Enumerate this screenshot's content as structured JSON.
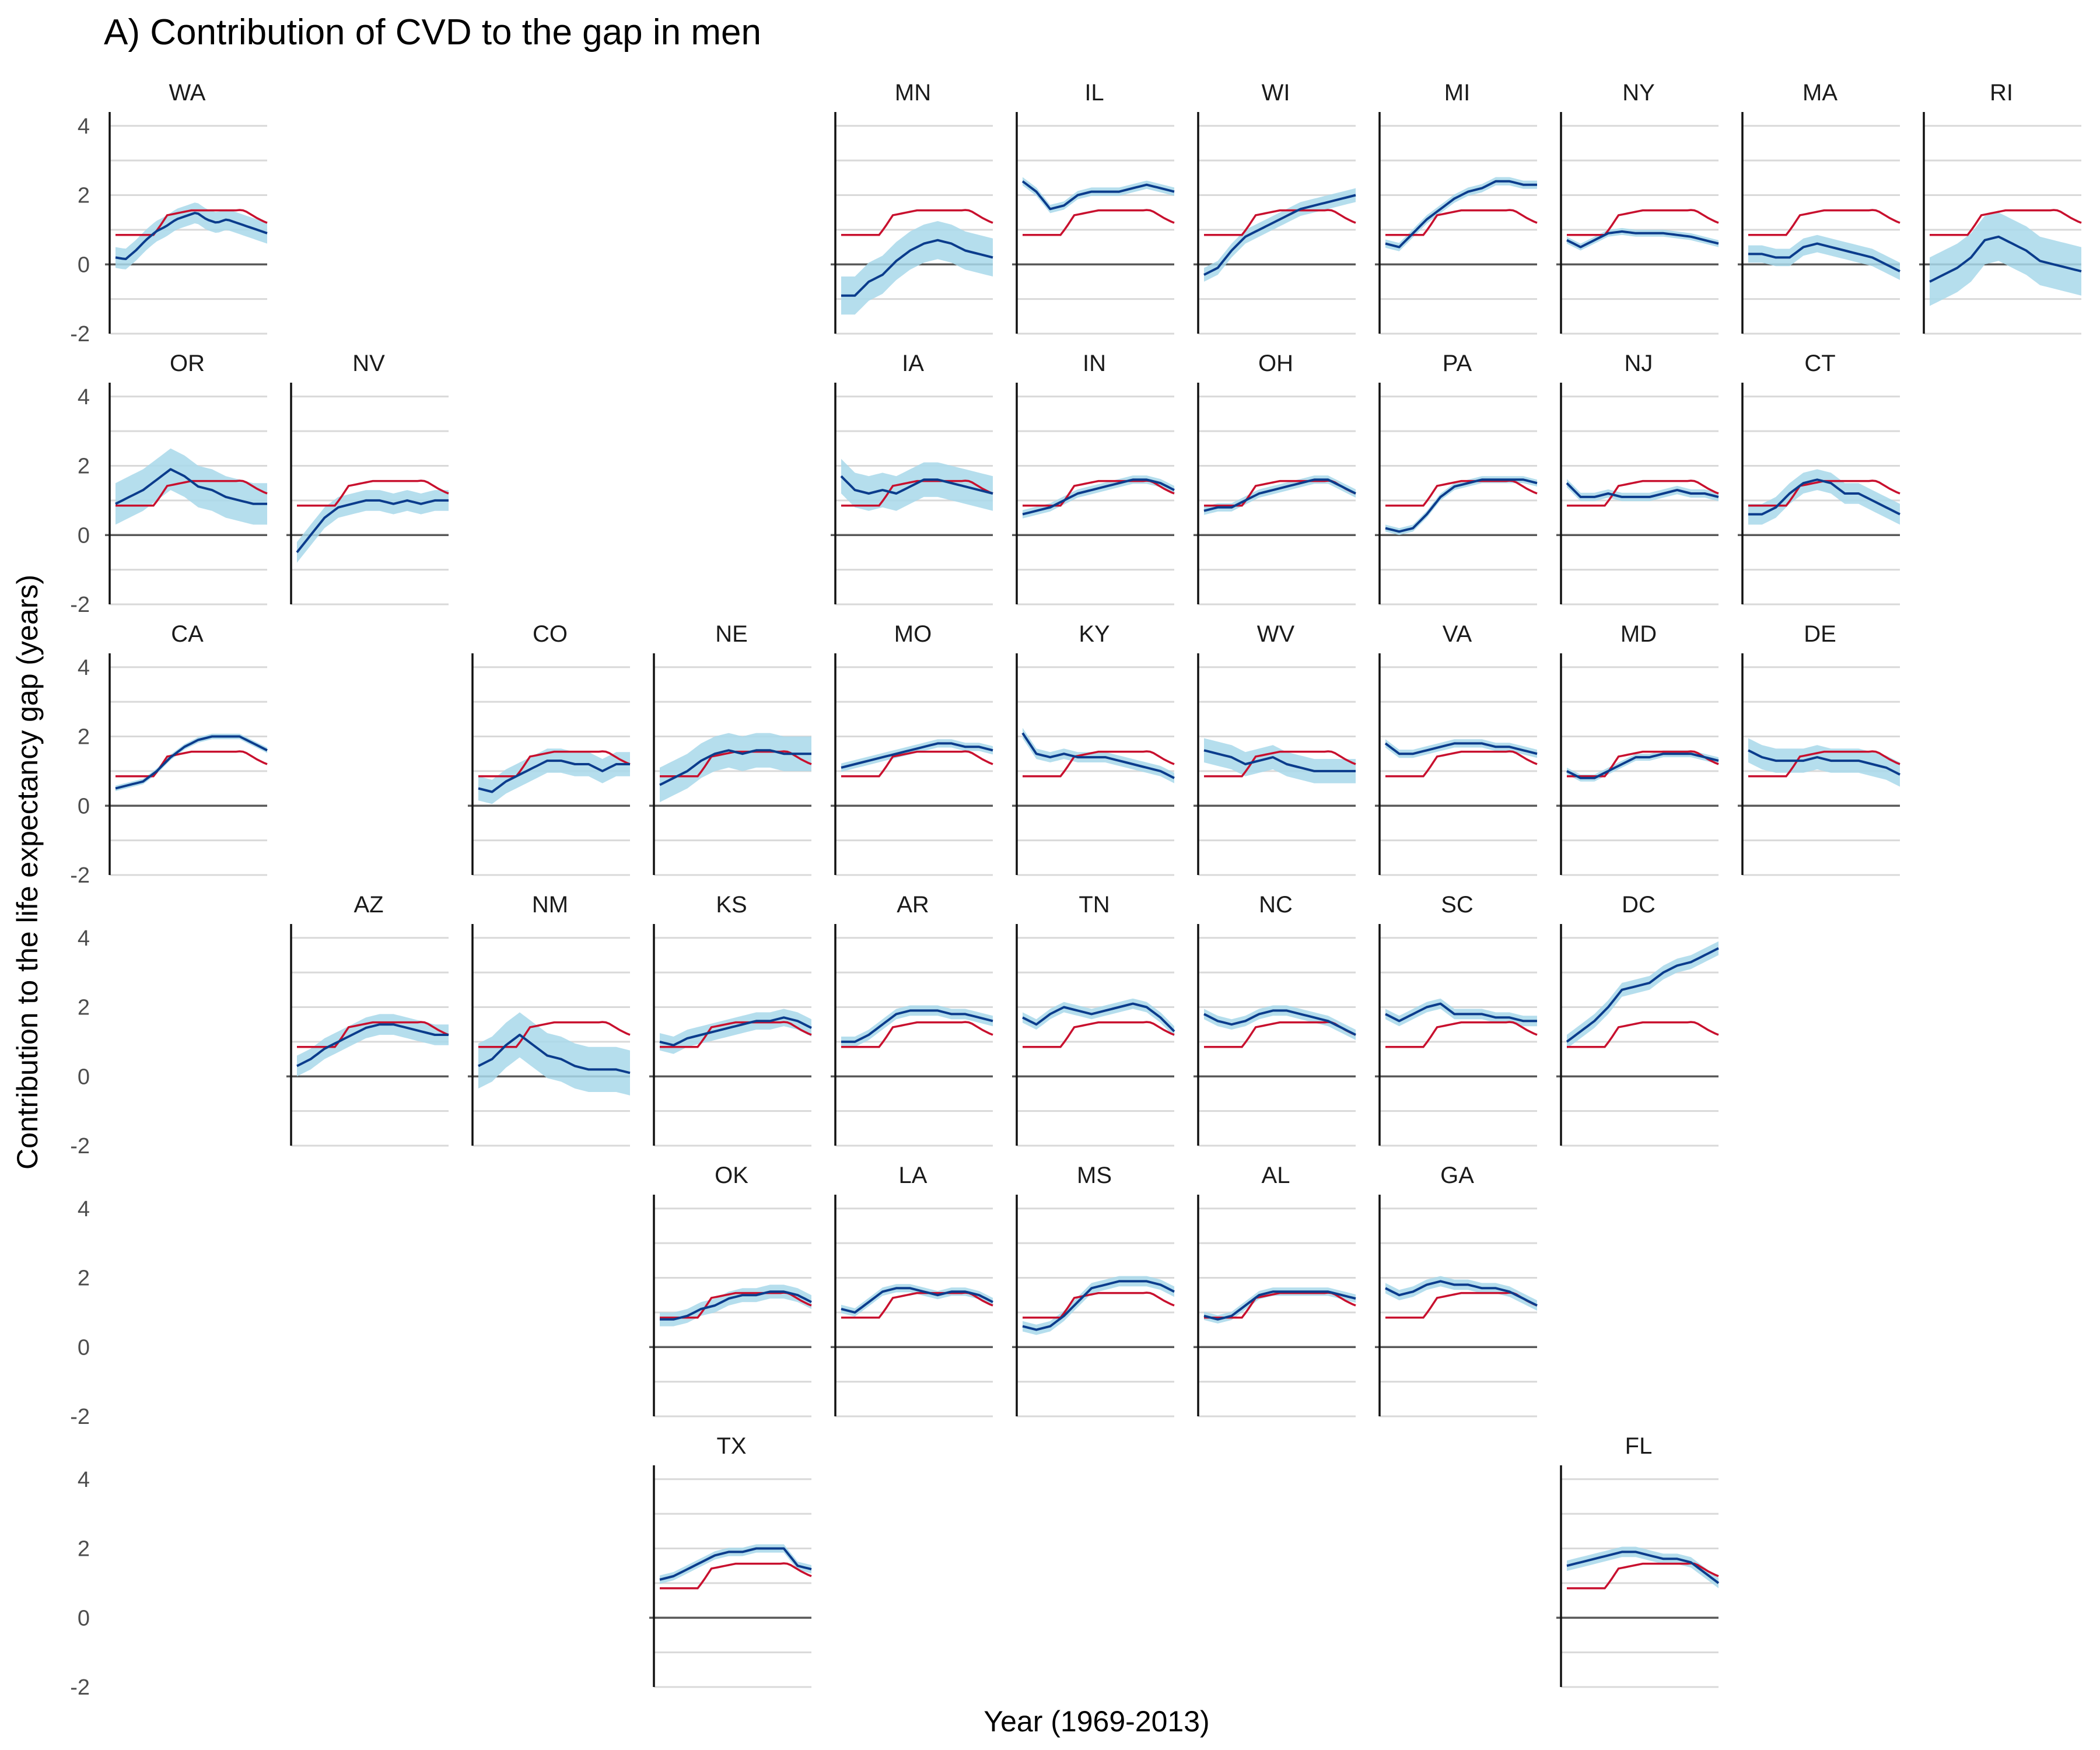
{
  "chart_data": {
    "type": "line",
    "title": "A) Contribution of CVD to the gap in men",
    "xlabel": "Year (1969-2013)",
    "ylabel": "Contribution to the life expectancy gap (years)",
    "ylim": [
      -2,
      4.4
    ],
    "yticks": [
      4,
      2,
      0,
      -2
    ],
    "ytick_labels": [
      "4",
      "2",
      "0",
      "-2"
    ],
    "grid": true,
    "colors": {
      "state_line": "#0b3c8c",
      "state_band": "#a8d8ea",
      "national_line": "#c8102e",
      "zero_line": "#595959",
      "grid": "#d9d9d9"
    },
    "reference_series": [
      0.85,
      0.85,
      0.85,
      0.85,
      0.85,
      0.85,
      0.85,
      0.85,
      0.85,
      0.85,
      0.85,
      0.85,
      0.98,
      1.12,
      1.27,
      1.42,
      1.44,
      1.46,
      1.48,
      1.5,
      1.52,
      1.54,
      1.56,
      1.56,
      1.56,
      1.56,
      1.56,
      1.56,
      1.56,
      1.56,
      1.56,
      1.56,
      1.56,
      1.56,
      1.56,
      1.56,
      1.57,
      1.56,
      1.52,
      1.46,
      1.4,
      1.34,
      1.29,
      1.24,
      1.2
    ],
    "states": [
      {
        "name": "WA",
        "row": 0,
        "col": 0,
        "ci": 0.3,
        "values": [
          0.2,
          0.15,
          0.4,
          0.7,
          0.95,
          1.1,
          1.3,
          1.4,
          1.5,
          1.3,
          1.2,
          1.3,
          1.2,
          1.1,
          1.0,
          0.9
        ]
      },
      {
        "name": "MN",
        "row": 0,
        "col": 4,
        "ci": 0.55,
        "values": [
          -0.9,
          -0.9,
          -0.5,
          -0.3,
          0.1,
          0.4,
          0.6,
          0.7,
          0.6,
          0.4,
          0.3,
          0.2
        ]
      },
      {
        "name": "IL",
        "row": 0,
        "col": 5,
        "ci": 0.12,
        "values": [
          2.4,
          2.1,
          1.6,
          1.7,
          2.0,
          2.1,
          2.1,
          2.1,
          2.2,
          2.3,
          2.2,
          2.1
        ]
      },
      {
        "name": "WI",
        "row": 0,
        "col": 6,
        "ci": 0.2,
        "values": [
          -0.3,
          -0.1,
          0.4,
          0.8,
          1.0,
          1.2,
          1.4,
          1.6,
          1.7,
          1.8,
          1.9,
          2.0
        ]
      },
      {
        "name": "MI",
        "row": 0,
        "col": 7,
        "ci": 0.12,
        "values": [
          0.6,
          0.5,
          0.9,
          1.3,
          1.6,
          1.9,
          2.1,
          2.2,
          2.4,
          2.4,
          2.3,
          2.3
        ]
      },
      {
        "name": "NY",
        "row": 0,
        "col": 8,
        "ci": 0.1,
        "values": [
          0.7,
          0.5,
          0.7,
          0.9,
          0.95,
          0.9,
          0.9,
          0.9,
          0.85,
          0.8,
          0.7,
          0.6
        ]
      },
      {
        "name": "MA",
        "row": 0,
        "col": 9,
        "ci": 0.25,
        "values": [
          0.3,
          0.3,
          0.2,
          0.2,
          0.5,
          0.6,
          0.5,
          0.4,
          0.3,
          0.2,
          0.0,
          -0.2
        ]
      },
      {
        "name": "RI",
        "row": 0,
        "col": 10,
        "ci": 0.7,
        "values": [
          -0.5,
          -0.3,
          -0.1,
          0.2,
          0.7,
          0.8,
          0.6,
          0.4,
          0.1,
          0.0,
          -0.1,
          -0.2
        ]
      },
      {
        "name": "OR",
        "row": 1,
        "col": 0,
        "ci": 0.6,
        "values": [
          0.9,
          1.1,
          1.3,
          1.6,
          1.9,
          1.7,
          1.4,
          1.3,
          1.1,
          1.0,
          0.9,
          0.9
        ]
      },
      {
        "name": "NV",
        "row": 1,
        "col": 1,
        "ci": 0.3,
        "values": [
          -0.5,
          0.0,
          0.5,
          0.8,
          0.9,
          1.0,
          1.0,
          0.9,
          1.0,
          0.9,
          1.0,
          1.0
        ]
      },
      {
        "name": "IA",
        "row": 1,
        "col": 4,
        "ci": 0.5,
        "values": [
          1.7,
          1.3,
          1.2,
          1.3,
          1.2,
          1.4,
          1.6,
          1.6,
          1.5,
          1.4,
          1.3,
          1.2
        ]
      },
      {
        "name": "IN",
        "row": 1,
        "col": 5,
        "ci": 0.12,
        "values": [
          0.6,
          0.7,
          0.8,
          1.0,
          1.2,
          1.3,
          1.4,
          1.5,
          1.6,
          1.6,
          1.5,
          1.3
        ]
      },
      {
        "name": "OH",
        "row": 1,
        "col": 6,
        "ci": 0.12,
        "values": [
          0.7,
          0.8,
          0.8,
          1.0,
          1.2,
          1.3,
          1.4,
          1.5,
          1.6,
          1.6,
          1.4,
          1.2
        ]
      },
      {
        "name": "PA",
        "row": 1,
        "col": 7,
        "ci": 0.1,
        "values": [
          0.2,
          0.1,
          0.2,
          0.6,
          1.1,
          1.4,
          1.5,
          1.6,
          1.6,
          1.6,
          1.6,
          1.5
        ]
      },
      {
        "name": "NJ",
        "row": 1,
        "col": 8,
        "ci": 0.12,
        "values": [
          1.5,
          1.1,
          1.1,
          1.2,
          1.1,
          1.1,
          1.1,
          1.2,
          1.3,
          1.2,
          1.2,
          1.1
        ]
      },
      {
        "name": "CT",
        "row": 1,
        "col": 9,
        "ci": 0.3,
        "values": [
          0.6,
          0.6,
          0.8,
          1.2,
          1.5,
          1.6,
          1.5,
          1.2,
          1.2,
          1.0,
          0.8,
          0.6
        ]
      },
      {
        "name": "CA",
        "row": 2,
        "col": 0,
        "ci": 0.08,
        "values": [
          0.5,
          0.6,
          0.7,
          1.0,
          1.4,
          1.7,
          1.9,
          2.0,
          2.0,
          2.0,
          1.8,
          1.6
        ]
      },
      {
        "name": "CO",
        "row": 2,
        "col": 2,
        "ci": 0.35,
        "values": [
          0.5,
          0.4,
          0.7,
          0.9,
          1.1,
          1.3,
          1.3,
          1.2,
          1.2,
          1.0,
          1.2,
          1.2
        ]
      },
      {
        "name": "NE",
        "row": 2,
        "col": 3,
        "ci": 0.5,
        "values": [
          0.6,
          0.8,
          1.0,
          1.3,
          1.5,
          1.6,
          1.5,
          1.6,
          1.6,
          1.5,
          1.5,
          1.5
        ]
      },
      {
        "name": "MO",
        "row": 2,
        "col": 4,
        "ci": 0.12,
        "values": [
          1.1,
          1.2,
          1.3,
          1.4,
          1.5,
          1.6,
          1.7,
          1.8,
          1.8,
          1.7,
          1.7,
          1.6
        ]
      },
      {
        "name": "KY",
        "row": 2,
        "col": 5,
        "ci": 0.15,
        "values": [
          2.1,
          1.5,
          1.4,
          1.5,
          1.4,
          1.4,
          1.4,
          1.3,
          1.2,
          1.1,
          1.0,
          0.8
        ]
      },
      {
        "name": "WV",
        "row": 2,
        "col": 6,
        "ci": 0.35,
        "values": [
          1.6,
          1.5,
          1.4,
          1.2,
          1.3,
          1.4,
          1.2,
          1.1,
          1.0,
          1.0,
          1.0,
          1.0
        ]
      },
      {
        "name": "VA",
        "row": 2,
        "col": 7,
        "ci": 0.12,
        "values": [
          1.8,
          1.5,
          1.5,
          1.6,
          1.7,
          1.8,
          1.8,
          1.8,
          1.7,
          1.7,
          1.6,
          1.5
        ]
      },
      {
        "name": "MD",
        "row": 2,
        "col": 8,
        "ci": 0.1,
        "values": [
          1.0,
          0.8,
          0.8,
          1.0,
          1.2,
          1.4,
          1.4,
          1.5,
          1.5,
          1.5,
          1.4,
          1.3
        ]
      },
      {
        "name": "DE",
        "row": 2,
        "col": 9,
        "ci": 0.35,
        "values": [
          1.6,
          1.4,
          1.3,
          1.3,
          1.3,
          1.4,
          1.3,
          1.3,
          1.3,
          1.2,
          1.1,
          0.9
        ]
      },
      {
        "name": "AZ",
        "row": 3,
        "col": 1,
        "ci": 0.3,
        "values": [
          0.3,
          0.5,
          0.8,
          1.0,
          1.2,
          1.4,
          1.5,
          1.5,
          1.4,
          1.3,
          1.2,
          1.2
        ]
      },
      {
        "name": "NM",
        "row": 3,
        "col": 2,
        "ci": 0.65,
        "values": [
          0.3,
          0.5,
          0.9,
          1.2,
          0.9,
          0.6,
          0.5,
          0.3,
          0.2,
          0.2,
          0.2,
          0.1
        ]
      },
      {
        "name": "KS",
        "row": 3,
        "col": 3,
        "ci": 0.25,
        "values": [
          1.0,
          0.9,
          1.1,
          1.2,
          1.3,
          1.4,
          1.5,
          1.6,
          1.6,
          1.7,
          1.6,
          1.4
        ]
      },
      {
        "name": "AR",
        "row": 3,
        "col": 4,
        "ci": 0.15,
        "values": [
          1.0,
          1.0,
          1.2,
          1.5,
          1.8,
          1.9,
          1.9,
          1.9,
          1.8,
          1.8,
          1.7,
          1.6
        ]
      },
      {
        "name": "TN",
        "row": 3,
        "col": 5,
        "ci": 0.15,
        "values": [
          1.7,
          1.5,
          1.8,
          2.0,
          1.9,
          1.8,
          1.9,
          2.0,
          2.1,
          2.0,
          1.7,
          1.3
        ]
      },
      {
        "name": "NC",
        "row": 3,
        "col": 6,
        "ci": 0.15,
        "values": [
          1.8,
          1.6,
          1.5,
          1.6,
          1.8,
          1.9,
          1.9,
          1.8,
          1.7,
          1.6,
          1.4,
          1.2
        ]
      },
      {
        "name": "SC",
        "row": 3,
        "col": 7,
        "ci": 0.15,
        "values": [
          1.8,
          1.6,
          1.8,
          2.0,
          2.1,
          1.8,
          1.8,
          1.8,
          1.7,
          1.7,
          1.6,
          1.6
        ]
      },
      {
        "name": "DC",
        "row": 3,
        "col": 8,
        "ci": 0.2,
        "values": [
          1.0,
          1.3,
          1.6,
          2.0,
          2.5,
          2.6,
          2.7,
          3.0,
          3.2,
          3.3,
          3.5,
          3.7
        ]
      },
      {
        "name": "OK",
        "row": 4,
        "col": 3,
        "ci": 0.2,
        "values": [
          0.8,
          0.8,
          0.9,
          1.1,
          1.2,
          1.4,
          1.5,
          1.5,
          1.6,
          1.6,
          1.5,
          1.3
        ]
      },
      {
        "name": "LA",
        "row": 4,
        "col": 4,
        "ci": 0.12,
        "values": [
          1.1,
          1.0,
          1.3,
          1.6,
          1.7,
          1.7,
          1.6,
          1.5,
          1.6,
          1.6,
          1.5,
          1.3
        ]
      },
      {
        "name": "MS",
        "row": 4,
        "col": 5,
        "ci": 0.15,
        "values": [
          0.6,
          0.5,
          0.6,
          0.9,
          1.3,
          1.7,
          1.8,
          1.9,
          1.9,
          1.9,
          1.8,
          1.6
        ]
      },
      {
        "name": "AL",
        "row": 4,
        "col": 6,
        "ci": 0.12,
        "values": [
          0.9,
          0.8,
          0.9,
          1.2,
          1.5,
          1.6,
          1.6,
          1.6,
          1.6,
          1.6,
          1.5,
          1.4
        ]
      },
      {
        "name": "GA",
        "row": 4,
        "col": 7,
        "ci": 0.15,
        "values": [
          1.7,
          1.5,
          1.6,
          1.8,
          1.9,
          1.8,
          1.8,
          1.7,
          1.7,
          1.6,
          1.4,
          1.2
        ]
      },
      {
        "name": "TX",
        "row": 5,
        "col": 3,
        "ci": 0.12,
        "values": [
          1.1,
          1.2,
          1.4,
          1.6,
          1.8,
          1.9,
          1.9,
          2.0,
          2.0,
          2.0,
          1.5,
          1.4
        ]
      },
      {
        "name": "FL",
        "row": 5,
        "col": 8,
        "ci": 0.15,
        "values": [
          1.5,
          1.6,
          1.7,
          1.8,
          1.9,
          1.9,
          1.8,
          1.7,
          1.7,
          1.6,
          1.3,
          1.0
        ]
      }
    ]
  }
}
